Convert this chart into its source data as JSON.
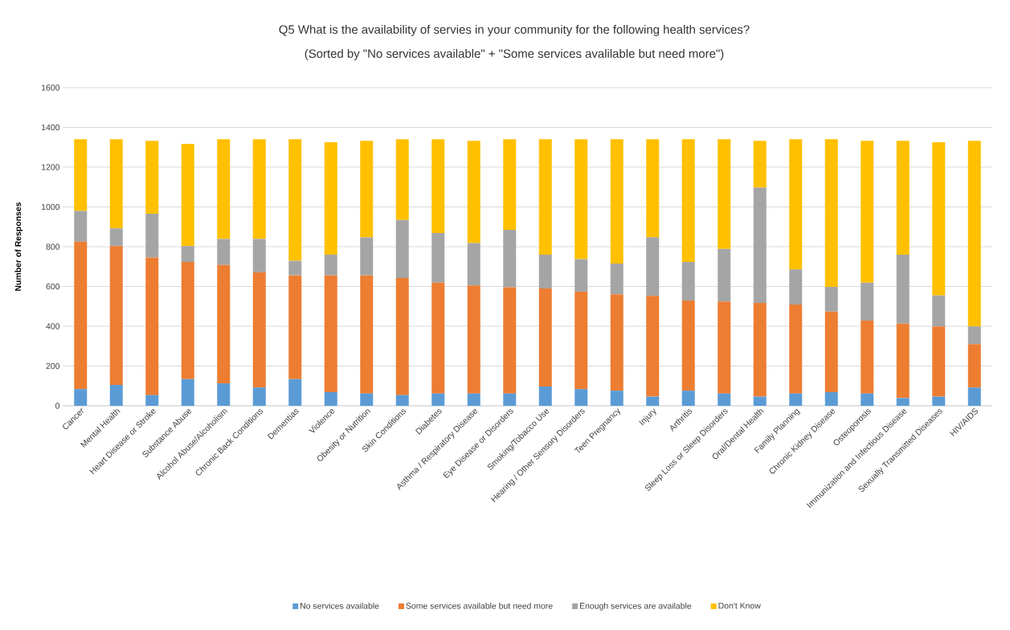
{
  "chart_data": {
    "type": "bar",
    "stacked": true,
    "title": "Q5 What is the availability of servies in your community for the following health services?",
    "subtitle": "(Sorted by \"No services available\" + \"Some services avalilable but need more\")",
    "ylabel": "Number of Responses",
    "categories": [
      "Cancer",
      "Mental Health",
      "Heart Disease or Stroke",
      "Substance Abuse",
      "Alcohol Abuse/Alcoholism",
      "Chronic Back Conditions",
      "Dementias",
      "Violence",
      "Obesity or Nutrition",
      "Skin Conditions",
      "Diabetes",
      "Asthma / Respiratory Disease",
      "Eye Disease or Disorders",
      "Smoking/Tobacco Use",
      "Hearing / Other Sensory Disorders",
      "Teen Pregnancy",
      "Injury",
      "Arthritis",
      "Sleep Loss or Sleep Disorders",
      "Oral/Dental Health",
      "Family Planning",
      "Chronic Kidney Disease",
      "Osteoporosis",
      "Immunization and Infectious Disease",
      "Sexually Transmitted Diseases",
      "HIV/AIDS"
    ],
    "series": [
      {
        "name": "No services available",
        "color": "#5b9bd5",
        "values": [
          84,
          105,
          54,
          134,
          113,
          92,
          134,
          69,
          62,
          54,
          62,
          62,
          62,
          97,
          84,
          76,
          46,
          76,
          62,
          46,
          62,
          69,
          62,
          39,
          46,
          92
        ]
      },
      {
        "name": "Some services available but need more",
        "color": "#ed7d31",
        "values": [
          741,
          698,
          691,
          589,
          595,
          579,
          522,
          587,
          594,
          588,
          557,
          543,
          534,
          493,
          490,
          485,
          507,
          453,
          462,
          471,
          447,
          405,
          366,
          374,
          353,
          218
        ]
      },
      {
        "name": "Enough services are available",
        "color": "#a5a5a5",
        "values": [
          155,
          89,
          221,
          80,
          131,
          168,
          73,
          104,
          191,
          292,
          250,
          213,
          289,
          170,
          163,
          154,
          294,
          194,
          265,
          580,
          177,
          124,
          191,
          347,
          156,
          89
        ]
      },
      {
        "name": "Don't Know",
        "color": "#ffc000",
        "values": [
          360,
          448,
          366,
          514,
          501,
          501,
          611,
          565,
          485,
          406,
          471,
          514,
          455,
          580,
          603,
          625,
          493,
          617,
          551,
          235,
          654,
          742,
          713,
          572,
          770,
          933
        ]
      }
    ],
    "ylim": [
      0,
      1600
    ],
    "yticks": [
      0,
      200,
      400,
      600,
      800,
      1000,
      1200,
      1400,
      1600
    ],
    "grid": "y",
    "legend": "bottom"
  }
}
